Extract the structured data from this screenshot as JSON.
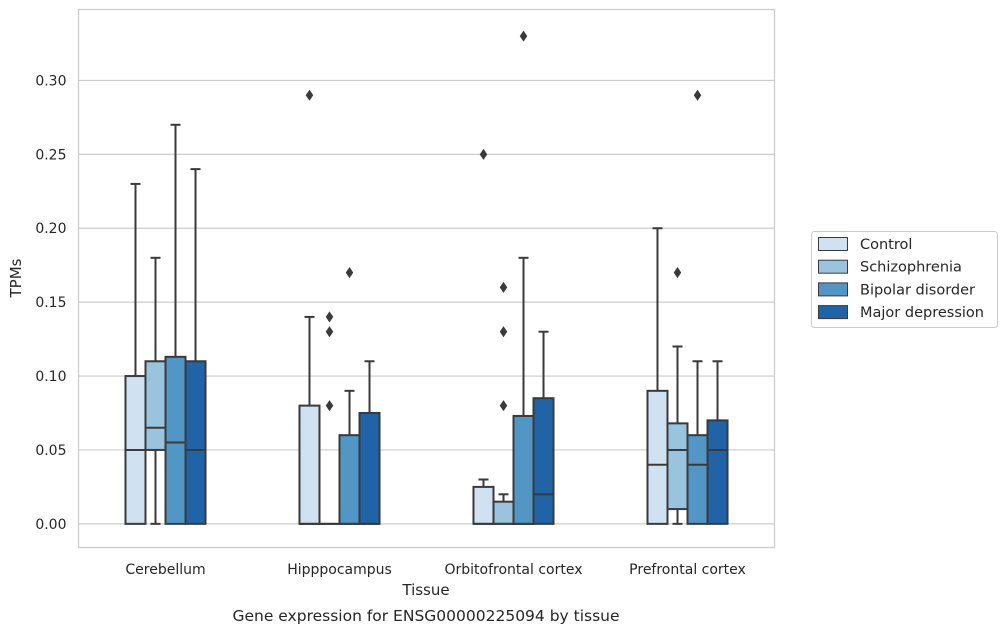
{
  "chart_data": {
    "type": "boxplot",
    "caption": "Gene expression for ENSG00000225094 by tissue",
    "xlabel": "Tissue",
    "ylabel": "TPMs",
    "ylim": [
      -0.016,
      0.348
    ],
    "yticks": [
      0.0,
      0.05,
      0.1,
      0.15,
      0.2,
      0.25,
      0.3
    ],
    "ytick_labels": [
      "0.00",
      "0.05",
      "0.10",
      "0.15",
      "0.20",
      "0.25",
      "0.30"
    ],
    "grid": "horizontal",
    "legend_position": "right",
    "categories": [
      "Cerebellum",
      "Hipppocampus",
      "Orbitofrontal cortex",
      "Prefrontal cortex"
    ],
    "series": [
      {
        "name": "Control",
        "color": "#d0e1f2",
        "boxes": [
          {
            "q1": 0.0,
            "median": 0.05,
            "q3": 0.1,
            "whisker_low": 0.0,
            "whisker_high": 0.23,
            "outliers": []
          },
          {
            "q1": 0.0,
            "median": 0.0,
            "q3": 0.08,
            "whisker_low": 0.0,
            "whisker_high": 0.14,
            "outliers": [
              0.29
            ]
          },
          {
            "q1": 0.0,
            "median": 0.0,
            "q3": 0.025,
            "whisker_low": 0.0,
            "whisker_high": 0.03,
            "outliers": [
              0.25
            ]
          },
          {
            "q1": 0.0,
            "median": 0.04,
            "q3": 0.09,
            "whisker_low": 0.0,
            "whisker_high": 0.2,
            "outliers": []
          }
        ]
      },
      {
        "name": "Schizophrenia",
        "color": "#9ac3dd",
        "boxes": [
          {
            "q1": 0.05,
            "median": 0.065,
            "q3": 0.11,
            "whisker_low": 0.0,
            "whisker_high": 0.18,
            "outliers": []
          },
          {
            "q1": 0.0,
            "median": 0.0,
            "q3": 0.0,
            "whisker_low": 0.0,
            "whisker_high": 0.0,
            "outliers": [
              0.08,
              0.13,
              0.14
            ]
          },
          {
            "q1": 0.0,
            "median": 0.0,
            "q3": 0.015,
            "whisker_low": 0.0,
            "whisker_high": 0.02,
            "outliers": [
              0.08,
              0.13,
              0.16
            ]
          },
          {
            "q1": 0.01,
            "median": 0.05,
            "q3": 0.068,
            "whisker_low": 0.0,
            "whisker_high": 0.12,
            "outliers": [
              0.17
            ]
          }
        ]
      },
      {
        "name": "Bipolar disorder",
        "color": "#5296c6",
        "boxes": [
          {
            "q1": 0.0,
            "median": 0.055,
            "q3": 0.113,
            "whisker_low": 0.0,
            "whisker_high": 0.27,
            "outliers": []
          },
          {
            "q1": 0.0,
            "median": 0.0,
            "q3": 0.06,
            "whisker_low": 0.0,
            "whisker_high": 0.09,
            "outliers": [
              0.17
            ]
          },
          {
            "q1": 0.0,
            "median": 0.0,
            "q3": 0.073,
            "whisker_low": 0.0,
            "whisker_high": 0.18,
            "outliers": [
              0.33
            ]
          },
          {
            "q1": 0.0,
            "median": 0.04,
            "q3": 0.06,
            "whisker_low": 0.0,
            "whisker_high": 0.11,
            "outliers": [
              0.29
            ]
          }
        ]
      },
      {
        "name": "Major depression",
        "color": "#2063a6",
        "boxes": [
          {
            "q1": 0.0,
            "median": 0.05,
            "q3": 0.11,
            "whisker_low": 0.0,
            "whisker_high": 0.24,
            "outliers": []
          },
          {
            "q1": 0.0,
            "median": 0.0,
            "q3": 0.075,
            "whisker_low": 0.0,
            "whisker_high": 0.11,
            "outliers": []
          },
          {
            "q1": 0.0,
            "median": 0.02,
            "q3": 0.085,
            "whisker_low": 0.0,
            "whisker_high": 0.13,
            "outliers": []
          },
          {
            "q1": 0.0,
            "median": 0.05,
            "q3": 0.07,
            "whisker_low": 0.0,
            "whisker_high": 0.11,
            "outliers": []
          }
        ]
      }
    ]
  },
  "colors": {
    "grid": "#cccccc",
    "frame": "#cccccc",
    "box_edge": "#3a3a3a",
    "text": "#262626"
  }
}
